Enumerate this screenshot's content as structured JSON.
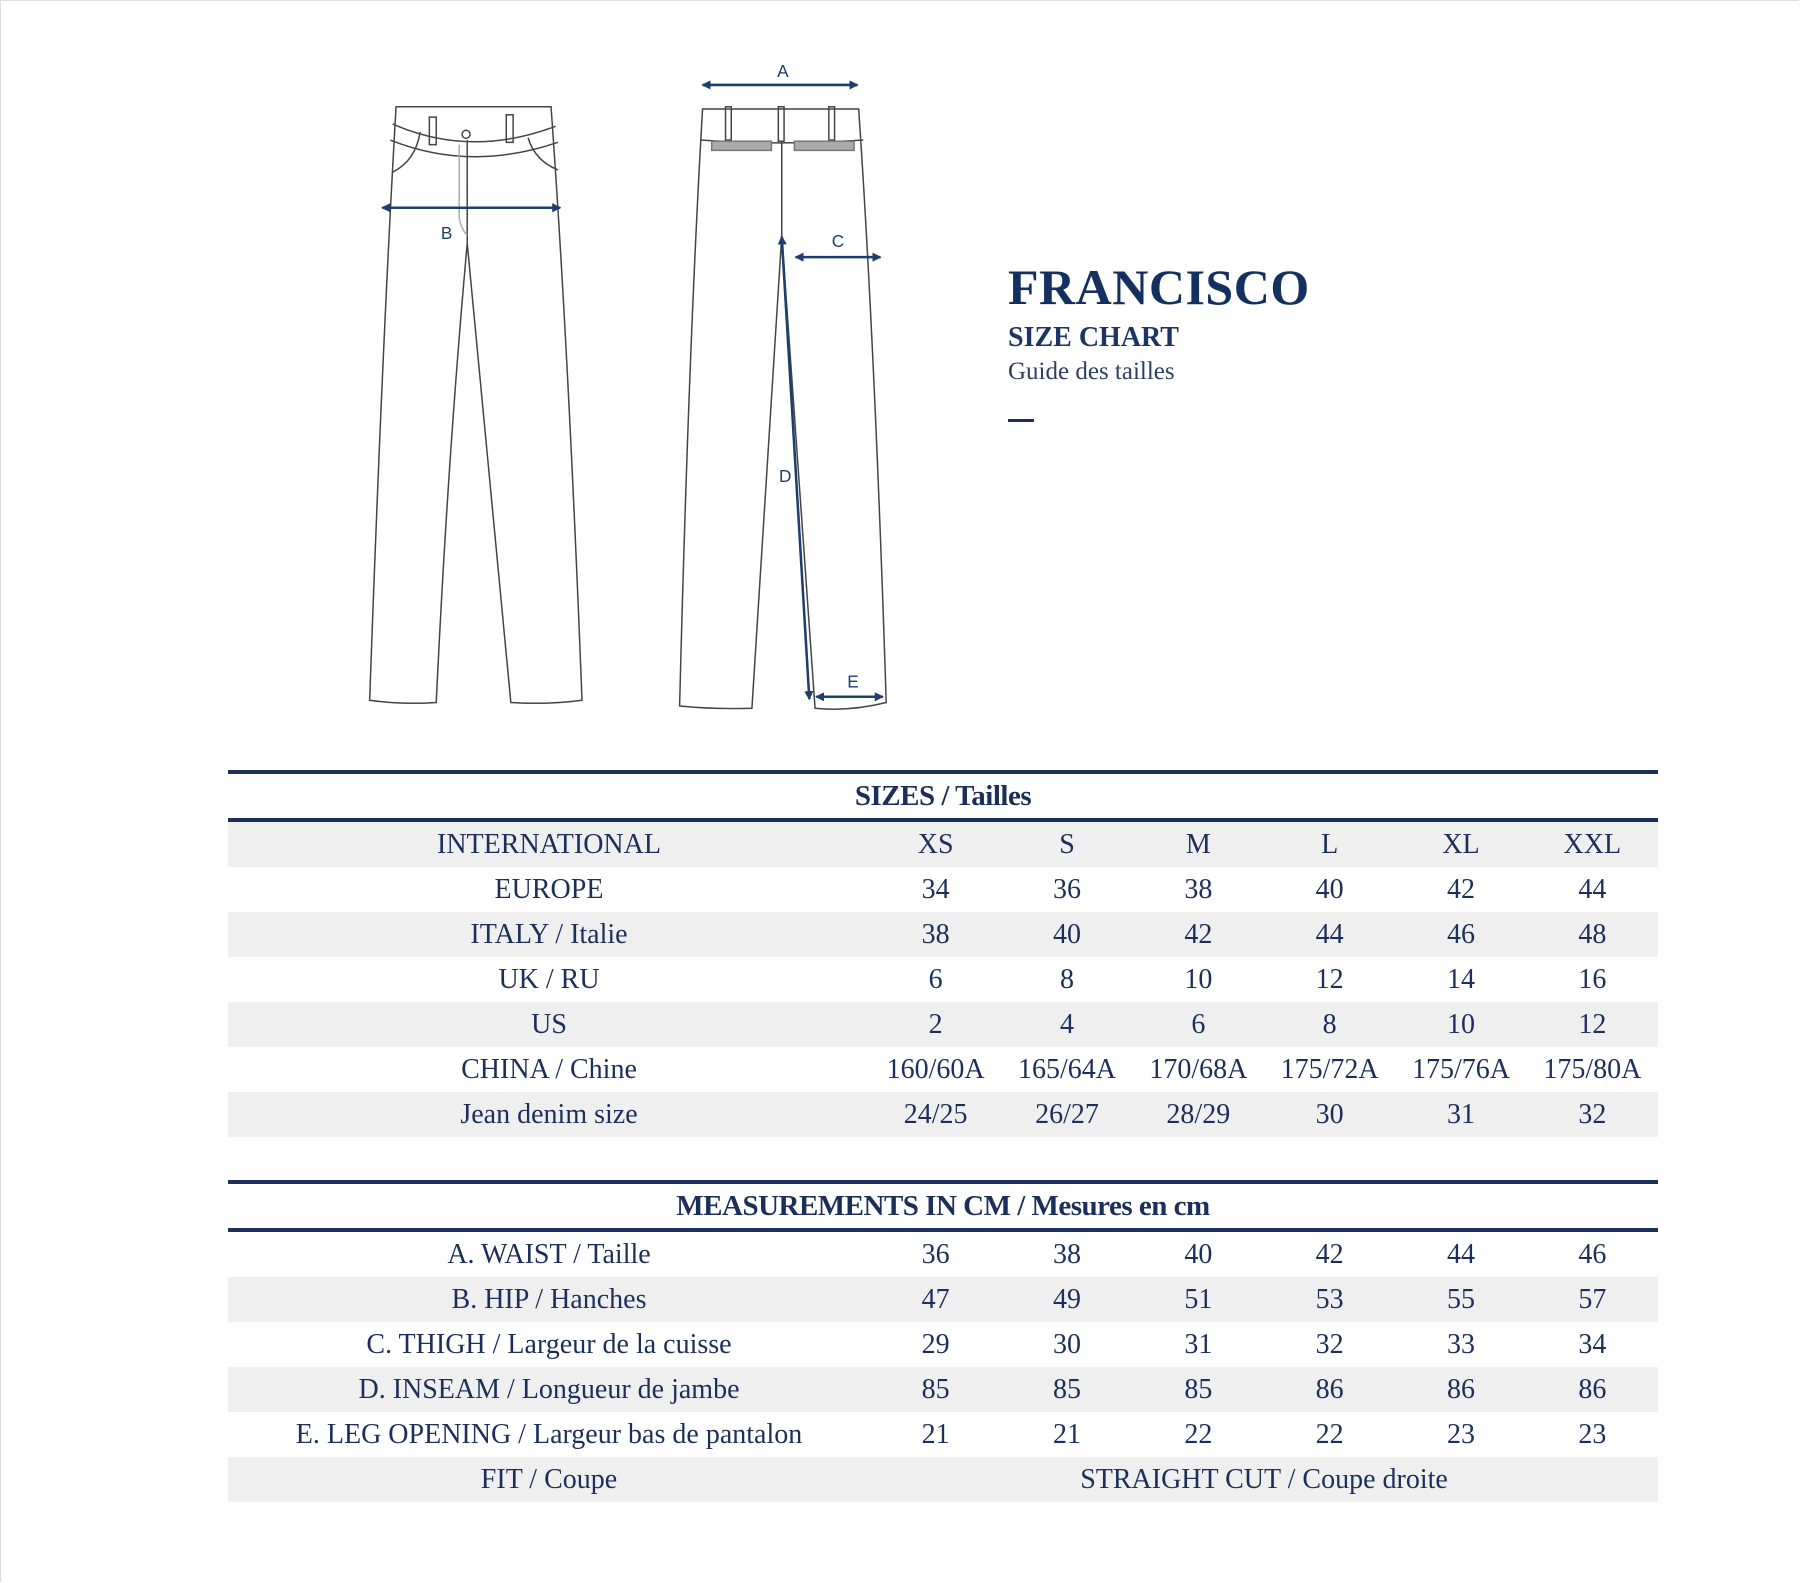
{
  "header": {
    "title": "FRANCISCO",
    "subtitle": "SIZE CHART",
    "subtitle_fr": "Guide des tailles"
  },
  "diagram": {
    "labels": {
      "a": "A",
      "b": "B",
      "c": "C",
      "d": "D",
      "e": "E"
    },
    "accent_color": "#1c3f6e"
  },
  "sizes": {
    "heading": "SIZES / Tailles",
    "rows": [
      {
        "label": "INTERNATIONAL",
        "values": [
          "XS",
          "S",
          "M",
          "L",
          "XL",
          "XXL"
        ]
      },
      {
        "label": "EUROPE",
        "values": [
          "34",
          "36",
          "38",
          "40",
          "42",
          "44"
        ]
      },
      {
        "label": "ITALY / Italie",
        "values": [
          "38",
          "40",
          "42",
          "44",
          "46",
          "48"
        ]
      },
      {
        "label": "UK / RU",
        "values": [
          "6",
          "8",
          "10",
          "12",
          "14",
          "16"
        ]
      },
      {
        "label": "US",
        "values": [
          "2",
          "4",
          "6",
          "8",
          "10",
          "12"
        ]
      },
      {
        "label": "CHINA / Chine",
        "values": [
          "160/60A",
          "165/64A",
          "170/68A",
          "175/72A",
          "175/76A",
          "175/80A"
        ]
      },
      {
        "label": "Jean denim size",
        "values": [
          "24/25",
          "26/27",
          "28/29",
          "30",
          "31",
          "32"
        ]
      }
    ]
  },
  "measurements": {
    "heading": "MEASUREMENTS IN CM / Mesures en cm",
    "rows": [
      {
        "label": "A. WAIST / Taille",
        "values": [
          "36",
          "38",
          "40",
          "42",
          "44",
          "46"
        ]
      },
      {
        "label": "B. HIP / Hanches",
        "values": [
          "47",
          "49",
          "51",
          "53",
          "55",
          "57"
        ]
      },
      {
        "label": "C. THIGH  / Largeur de la cuisse",
        "values": [
          "29",
          "30",
          "31",
          "32",
          "33",
          "34"
        ]
      },
      {
        "label": "D. INSEAM  / Longueur de jambe",
        "values": [
          "85",
          "85",
          "85",
          "86",
          "86",
          "86"
        ]
      },
      {
        "label": "E. LEG OPENING / Largeur bas de pantalon",
        "values": [
          "21",
          "21",
          "22",
          "22",
          "23",
          "23"
        ]
      }
    ],
    "fit": {
      "label": "FIT / Coupe",
      "value": "STRAIGHT CUT / Coupe droite"
    }
  }
}
